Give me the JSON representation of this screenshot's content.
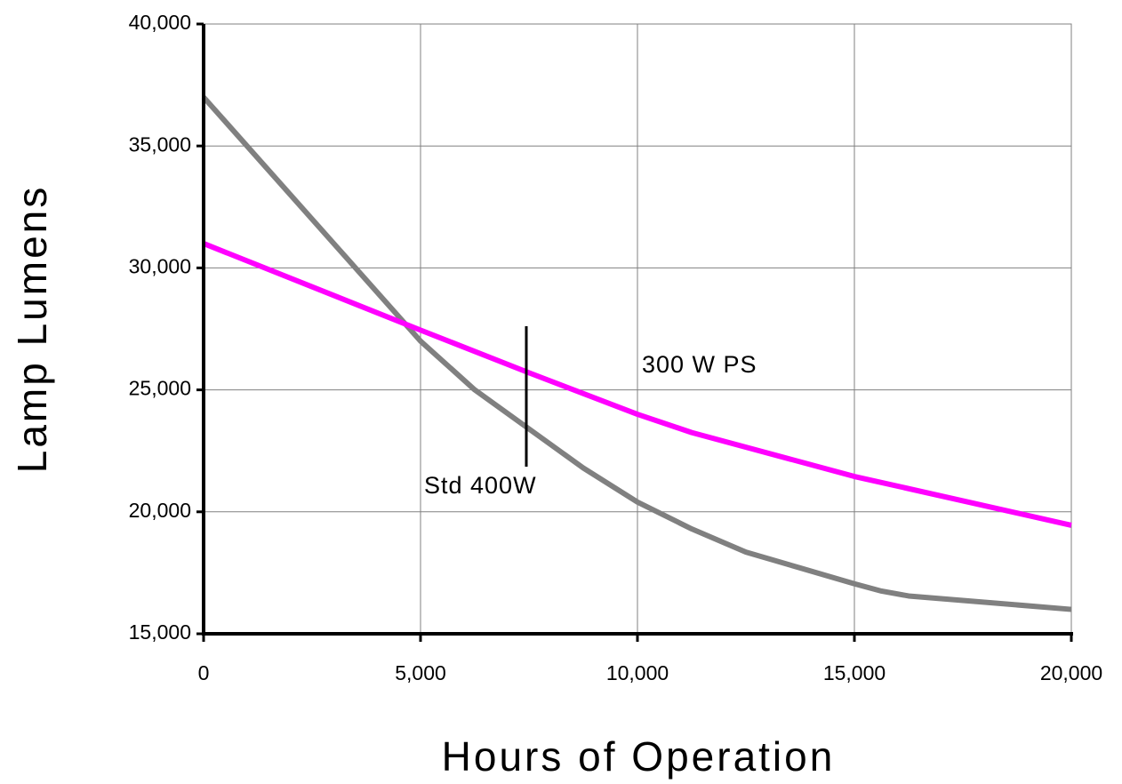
{
  "chart_data": {
    "type": "line",
    "xlabel": "Hours of Operation",
    "ylabel": "Lamp Lumens",
    "series": [
      {
        "name": "Std 400W",
        "color": "#808080",
        "x": [
          0,
          3250,
          5000,
          6250,
          8750,
          10000,
          11250,
          12500,
          15000,
          15625,
          16250,
          20000
        ],
        "values": [
          37000,
          30500,
          27000,
          25000,
          21800,
          20400,
          19300,
          18350,
          17050,
          16750,
          16550,
          16000
        ]
      },
      {
        "name": "300 W PS",
        "color": "#ff00ff",
        "x": [
          0,
          5000,
          7500,
          10000,
          11250,
          15000,
          20000
        ],
        "values": [
          31000,
          27450,
          25700,
          24000,
          23250,
          21450,
          19450
        ]
      }
    ],
    "xlim": [
      0,
      20000
    ],
    "xticks": [
      0,
      {
        "value": 5000,
        "label": "5,000"
      },
      {
        "value": 10000,
        "label": "10,000"
      },
      {
        "value": 15000,
        "label": "15,000"
      },
      {
        "value": 20000,
        "label": "20,000"
      }
    ],
    "ylim": [
      15000,
      40000
    ],
    "yticks": [
      {
        "value": 15000,
        "label": "15,000"
      },
      {
        "value": 20000,
        "label": "20,000"
      },
      {
        "value": 25000,
        "label": "25,000"
      },
      {
        "value": 30000,
        "label": "30,000"
      },
      {
        "value": 35000,
        "label": "35,000"
      },
      {
        "value": 40000,
        "label": "40,000"
      }
    ],
    "grid": true
  }
}
